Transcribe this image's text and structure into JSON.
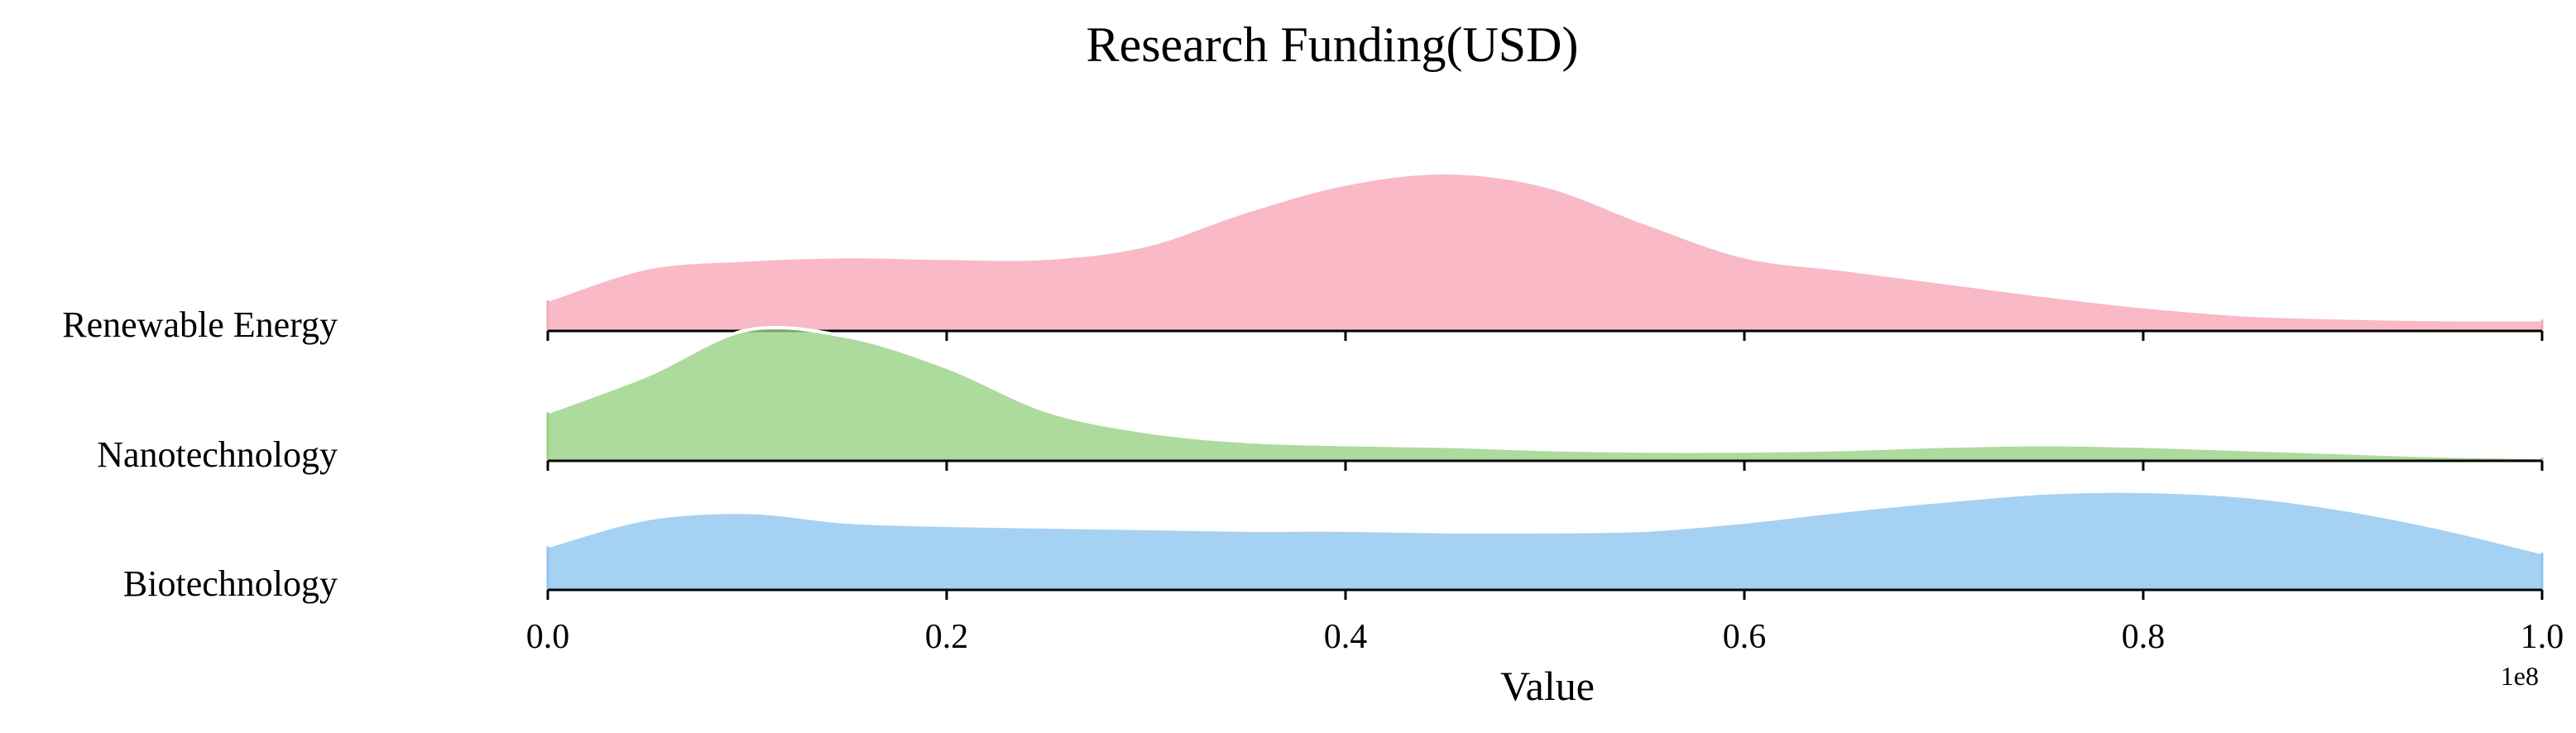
{
  "chart_data": {
    "type": "ridgeline",
    "title": "Research Funding(USD)",
    "xlabel": "Value",
    "x_offset_label": "1e8",
    "x_ticks": [
      "0.0",
      "0.2",
      "0.4",
      "0.6",
      "0.8",
      "1.0"
    ],
    "xlim": [
      0,
      100000000
    ],
    "grid": false,
    "legend": "none",
    "x": [
      0,
      5000000,
      10000000,
      15000000,
      20000000,
      25000000,
      30000000,
      35000000,
      40000000,
      45000000,
      50000000,
      55000000,
      60000000,
      65000000,
      70000000,
      75000000,
      80000000,
      85000000,
      90000000,
      95000000,
      100000000
    ],
    "series": [
      {
        "name": "Renewable Energy",
        "color": "#f7a8b8",
        "density": [
          0.19,
          0.39,
          0.44,
          0.46,
          0.45,
          0.45,
          0.53,
          0.74,
          0.91,
          0.98,
          0.9,
          0.67,
          0.46,
          0.38,
          0.3,
          0.22,
          0.15,
          0.1,
          0.08,
          0.07,
          0.07
        ]
      },
      {
        "name": "Nanotechnology",
        "color": "#98d185",
        "density": [
          0.3,
          0.53,
          0.81,
          0.77,
          0.58,
          0.31,
          0.18,
          0.12,
          0.1,
          0.09,
          0.07,
          0.06,
          0.06,
          0.07,
          0.09,
          0.1,
          0.09,
          0.07,
          0.05,
          0.03,
          0.02
        ]
      },
      {
        "name": "Biotechnology",
        "color": "#8ec5f0",
        "density": [
          0.27,
          0.44,
          0.48,
          0.42,
          0.4,
          0.39,
          0.38,
          0.37,
          0.37,
          0.36,
          0.36,
          0.37,
          0.42,
          0.49,
          0.55,
          0.6,
          0.61,
          0.58,
          0.5,
          0.38,
          0.23
        ]
      }
    ]
  }
}
